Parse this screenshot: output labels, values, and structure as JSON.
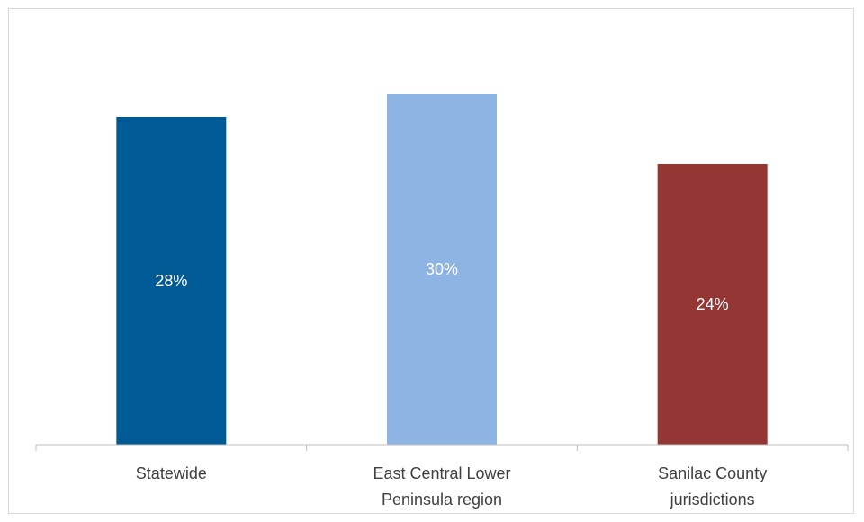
{
  "chart_data": {
    "type": "bar",
    "title": "",
    "xlabel": "",
    "ylabel": "",
    "ylim": [
      0,
      0.35
    ],
    "grid": false,
    "legend": "none",
    "categories": [
      [
        "Statewide"
      ],
      [
        "East Central Lower",
        "Peninsula region"
      ],
      [
        "Sanilac County",
        "jurisdictions"
      ]
    ],
    "values": [
      0.28,
      0.3,
      0.24
    ],
    "data_labels": [
      "28%",
      "30%",
      "24%"
    ],
    "colors": [
      "#005a96",
      "#8eb4e3",
      "#943634"
    ]
  }
}
